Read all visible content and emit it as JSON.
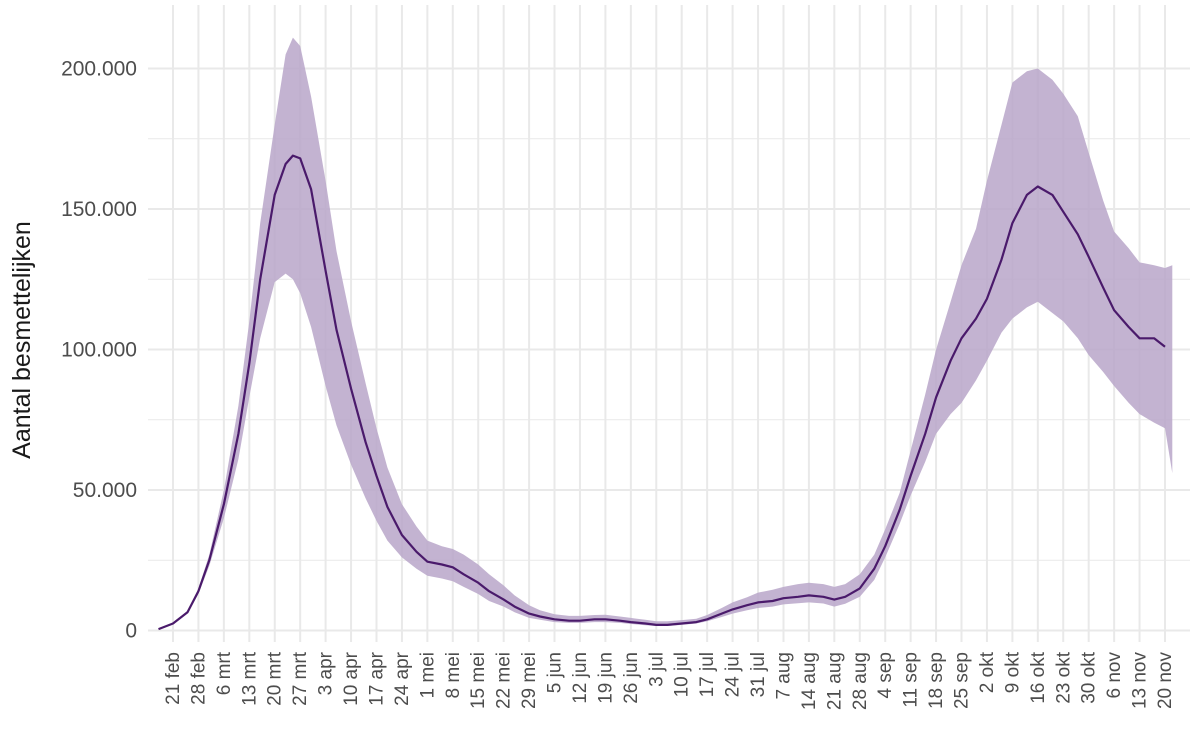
{
  "chart_data": {
    "type": "line",
    "title": "",
    "xlabel": "",
    "ylabel": "Aantal besmettelijken",
    "ylim": [
      0,
      215000
    ],
    "y_ticks": [
      0,
      50000,
      100000,
      150000,
      200000
    ],
    "y_tick_labels": [
      "0",
      "50.000",
      "100.000",
      "150.000",
      "200.000"
    ],
    "x_tick_labels": [
      "21 feb",
      "28 feb",
      "6 mrt",
      "13 mrt",
      "20 mrt",
      "27 mrt",
      "3 apr",
      "10 apr",
      "17 apr",
      "24 apr",
      "1 mei",
      "8 mei",
      "15 mei",
      "22 mei",
      "29 mei",
      "5 jun",
      "12 jun",
      "19 jun",
      "26 jun",
      "3 jul",
      "10 jul",
      "17 jul",
      "24 jul",
      "31 jul",
      "7 aug",
      "14 aug",
      "21 aug",
      "28 aug",
      "4 sep",
      "11 sep",
      "18 sep",
      "25 sep",
      "2 okt",
      "9 okt",
      "16 okt",
      "23 okt",
      "30 okt",
      "6 nov",
      "13 nov",
      "20 nov"
    ],
    "x_tick_dates": [
      "2020-02-21",
      "2020-02-28",
      "2020-03-06",
      "2020-03-13",
      "2020-03-20",
      "2020-03-27",
      "2020-04-03",
      "2020-04-10",
      "2020-04-17",
      "2020-04-24",
      "2020-05-01",
      "2020-05-08",
      "2020-05-15",
      "2020-05-22",
      "2020-05-29",
      "2020-06-05",
      "2020-06-12",
      "2020-06-19",
      "2020-06-26",
      "2020-07-03",
      "2020-07-10",
      "2020-07-17",
      "2020-07-24",
      "2020-07-31",
      "2020-08-07",
      "2020-08-14",
      "2020-08-21",
      "2020-08-28",
      "2020-09-04",
      "2020-09-11",
      "2020-09-18",
      "2020-09-25",
      "2020-10-02",
      "2020-10-09",
      "2020-10-16",
      "2020-10-23",
      "2020-10-30",
      "2020-11-06",
      "2020-11-13",
      "2020-11-20"
    ],
    "x_range": [
      "2020-02-17",
      "2020-11-22"
    ],
    "grid": true,
    "legend": "none",
    "colors": {
      "line": "#4a1a6b",
      "band": "#b9a6c9",
      "grid": "#e9e9e9"
    },
    "series": [
      {
        "x": [
          "2020-02-17",
          "2020-02-21",
          "2020-02-25",
          "2020-02-28",
          "2020-03-02",
          "2020-03-06",
          "2020-03-10",
          "2020-03-13",
          "2020-03-16",
          "2020-03-20",
          "2020-03-23",
          "2020-03-25",
          "2020-03-27",
          "2020-03-30",
          "2020-04-03",
          "2020-04-06",
          "2020-04-10",
          "2020-04-14",
          "2020-04-17",
          "2020-04-20",
          "2020-04-24",
          "2020-04-28",
          "2020-05-01",
          "2020-05-05",
          "2020-05-08",
          "2020-05-11",
          "2020-05-15",
          "2020-05-18",
          "2020-05-22",
          "2020-05-25",
          "2020-05-29",
          "2020-06-01",
          "2020-06-05",
          "2020-06-09",
          "2020-06-12",
          "2020-06-16",
          "2020-06-19",
          "2020-06-23",
          "2020-06-26",
          "2020-06-30",
          "2020-07-03",
          "2020-07-06",
          "2020-07-10",
          "2020-07-14",
          "2020-07-17",
          "2020-07-21",
          "2020-07-24",
          "2020-07-28",
          "2020-07-31",
          "2020-08-04",
          "2020-08-07",
          "2020-08-11",
          "2020-08-14",
          "2020-08-18",
          "2020-08-21",
          "2020-08-24",
          "2020-08-28",
          "2020-09-01",
          "2020-09-04",
          "2020-09-08",
          "2020-09-11",
          "2020-09-15",
          "2020-09-18",
          "2020-09-22",
          "2020-09-25",
          "2020-09-29",
          "2020-10-02",
          "2020-10-06",
          "2020-10-09",
          "2020-10-13",
          "2020-10-16",
          "2020-10-20",
          "2020-10-23",
          "2020-10-27",
          "2020-10-30",
          "2020-11-03",
          "2020-11-06",
          "2020-11-10",
          "2020-11-13",
          "2020-11-17",
          "2020-11-20"
        ],
        "y": [
          500,
          2500,
          6500,
          14000,
          25000,
          45000,
          70000,
          95000,
          125000,
          155000,
          166000,
          169000,
          168000,
          157000,
          128000,
          107000,
          86000,
          67000,
          55000,
          44000,
          34000,
          28000,
          24500,
          23500,
          22500,
          20000,
          17000,
          14000,
          11000,
          8500,
          6000,
          5000,
          4000,
          3500,
          3500,
          4000,
          4000,
          3500,
          3000,
          2500,
          2000,
          2000,
          2500,
          3000,
          4000,
          6000,
          7500,
          9000,
          10000,
          10500,
          11500,
          12000,
          12500,
          12000,
          11000,
          12000,
          15000,
          22000,
          30000,
          43000,
          55000,
          70000,
          83000,
          96000,
          104000,
          111000,
          118000,
          132000,
          145000,
          155000,
          158000,
          155000,
          149000,
          141000,
          133000,
          122000,
          114000,
          108000,
          104000,
          104000,
          101000
        ],
        "lower": [
          500,
          2500,
          6200,
          13000,
          23000,
          40000,
          61000,
          83000,
          104000,
          124000,
          127000,
          125000,
          120000,
          108000,
          87000,
          73000,
          59000,
          47000,
          39000,
          32000,
          26000,
          22000,
          19500,
          18500,
          17500,
          15500,
          13000,
          10500,
          8500,
          6500,
          4500,
          3800,
          3000,
          2700,
          2700,
          3000,
          3000,
          2700,
          2300,
          1900,
          1600,
          1600,
          2000,
          2500,
          3300,
          4800,
          6000,
          7200,
          8000,
          8500,
          9300,
          9700,
          10000,
          9600,
          8500,
          9500,
          12000,
          18000,
          26000,
          38000,
          48000,
          60000,
          70000,
          77000,
          81000,
          89000,
          96000,
          106000,
          111000,
          115000,
          117000,
          113000,
          110000,
          104000,
          98000,
          92000,
          87000,
          81000,
          77000,
          74000,
          72000
        ]
      }
    ],
    "band_upper": {
      "x": [
        "2020-02-17",
        "2020-02-21",
        "2020-02-25",
        "2020-02-28",
        "2020-03-02",
        "2020-03-06",
        "2020-03-10",
        "2020-03-13",
        "2020-03-16",
        "2020-03-20",
        "2020-03-23",
        "2020-03-25",
        "2020-03-27",
        "2020-03-30",
        "2020-04-03",
        "2020-04-06",
        "2020-04-10",
        "2020-04-14",
        "2020-04-17",
        "2020-04-20",
        "2020-04-24",
        "2020-04-28",
        "2020-05-01",
        "2020-05-05",
        "2020-05-08",
        "2020-05-11",
        "2020-05-15",
        "2020-05-18",
        "2020-05-22",
        "2020-05-25",
        "2020-05-29",
        "2020-06-01",
        "2020-06-05",
        "2020-06-09",
        "2020-06-12",
        "2020-06-16",
        "2020-06-19",
        "2020-06-23",
        "2020-06-26",
        "2020-06-30",
        "2020-07-03",
        "2020-07-06",
        "2020-07-10",
        "2020-07-14",
        "2020-07-17",
        "2020-07-21",
        "2020-07-24",
        "2020-07-28",
        "2020-07-31",
        "2020-08-04",
        "2020-08-07",
        "2020-08-11",
        "2020-08-14",
        "2020-08-18",
        "2020-08-21",
        "2020-08-24",
        "2020-08-28",
        "2020-09-01",
        "2020-09-04",
        "2020-09-08",
        "2020-09-11",
        "2020-09-15",
        "2020-09-18",
        "2020-09-22",
        "2020-09-25",
        "2020-09-29",
        "2020-10-02",
        "2020-10-06",
        "2020-10-09",
        "2020-10-13",
        "2020-10-16",
        "2020-10-20",
        "2020-10-23",
        "2020-10-27",
        "2020-10-30",
        "2020-11-03",
        "2020-11-06",
        "2020-11-10",
        "2020-11-13",
        "2020-11-17",
        "2020-11-20",
        "2020-11-22"
      ],
      "upper": [
        500,
        2600,
        7000,
        15000,
        27000,
        50000,
        80000,
        110000,
        145000,
        180000,
        205000,
        211000,
        208000,
        190000,
        160000,
        135000,
        110000,
        88000,
        72000,
        58000,
        45000,
        37000,
        32000,
        30000,
        29000,
        27000,
        23500,
        20000,
        16000,
        12500,
        9000,
        7200,
        5800,
        5200,
        5200,
        5500,
        5600,
        5000,
        4500,
        3800,
        3300,
        3300,
        3700,
        4200,
        5500,
        8000,
        10000,
        11800,
        13500,
        14500,
        15500,
        16500,
        17000,
        16500,
        15500,
        16500,
        20000,
        27000,
        36000,
        49000,
        64000,
        84000,
        100000,
        117000,
        130000,
        143000,
        160000,
        180000,
        195000,
        199000,
        200000,
        196000,
        191000,
        183000,
        170000,
        153000,
        142000,
        136000,
        131000,
        130000,
        129000,
        130000
      ]
    }
  }
}
